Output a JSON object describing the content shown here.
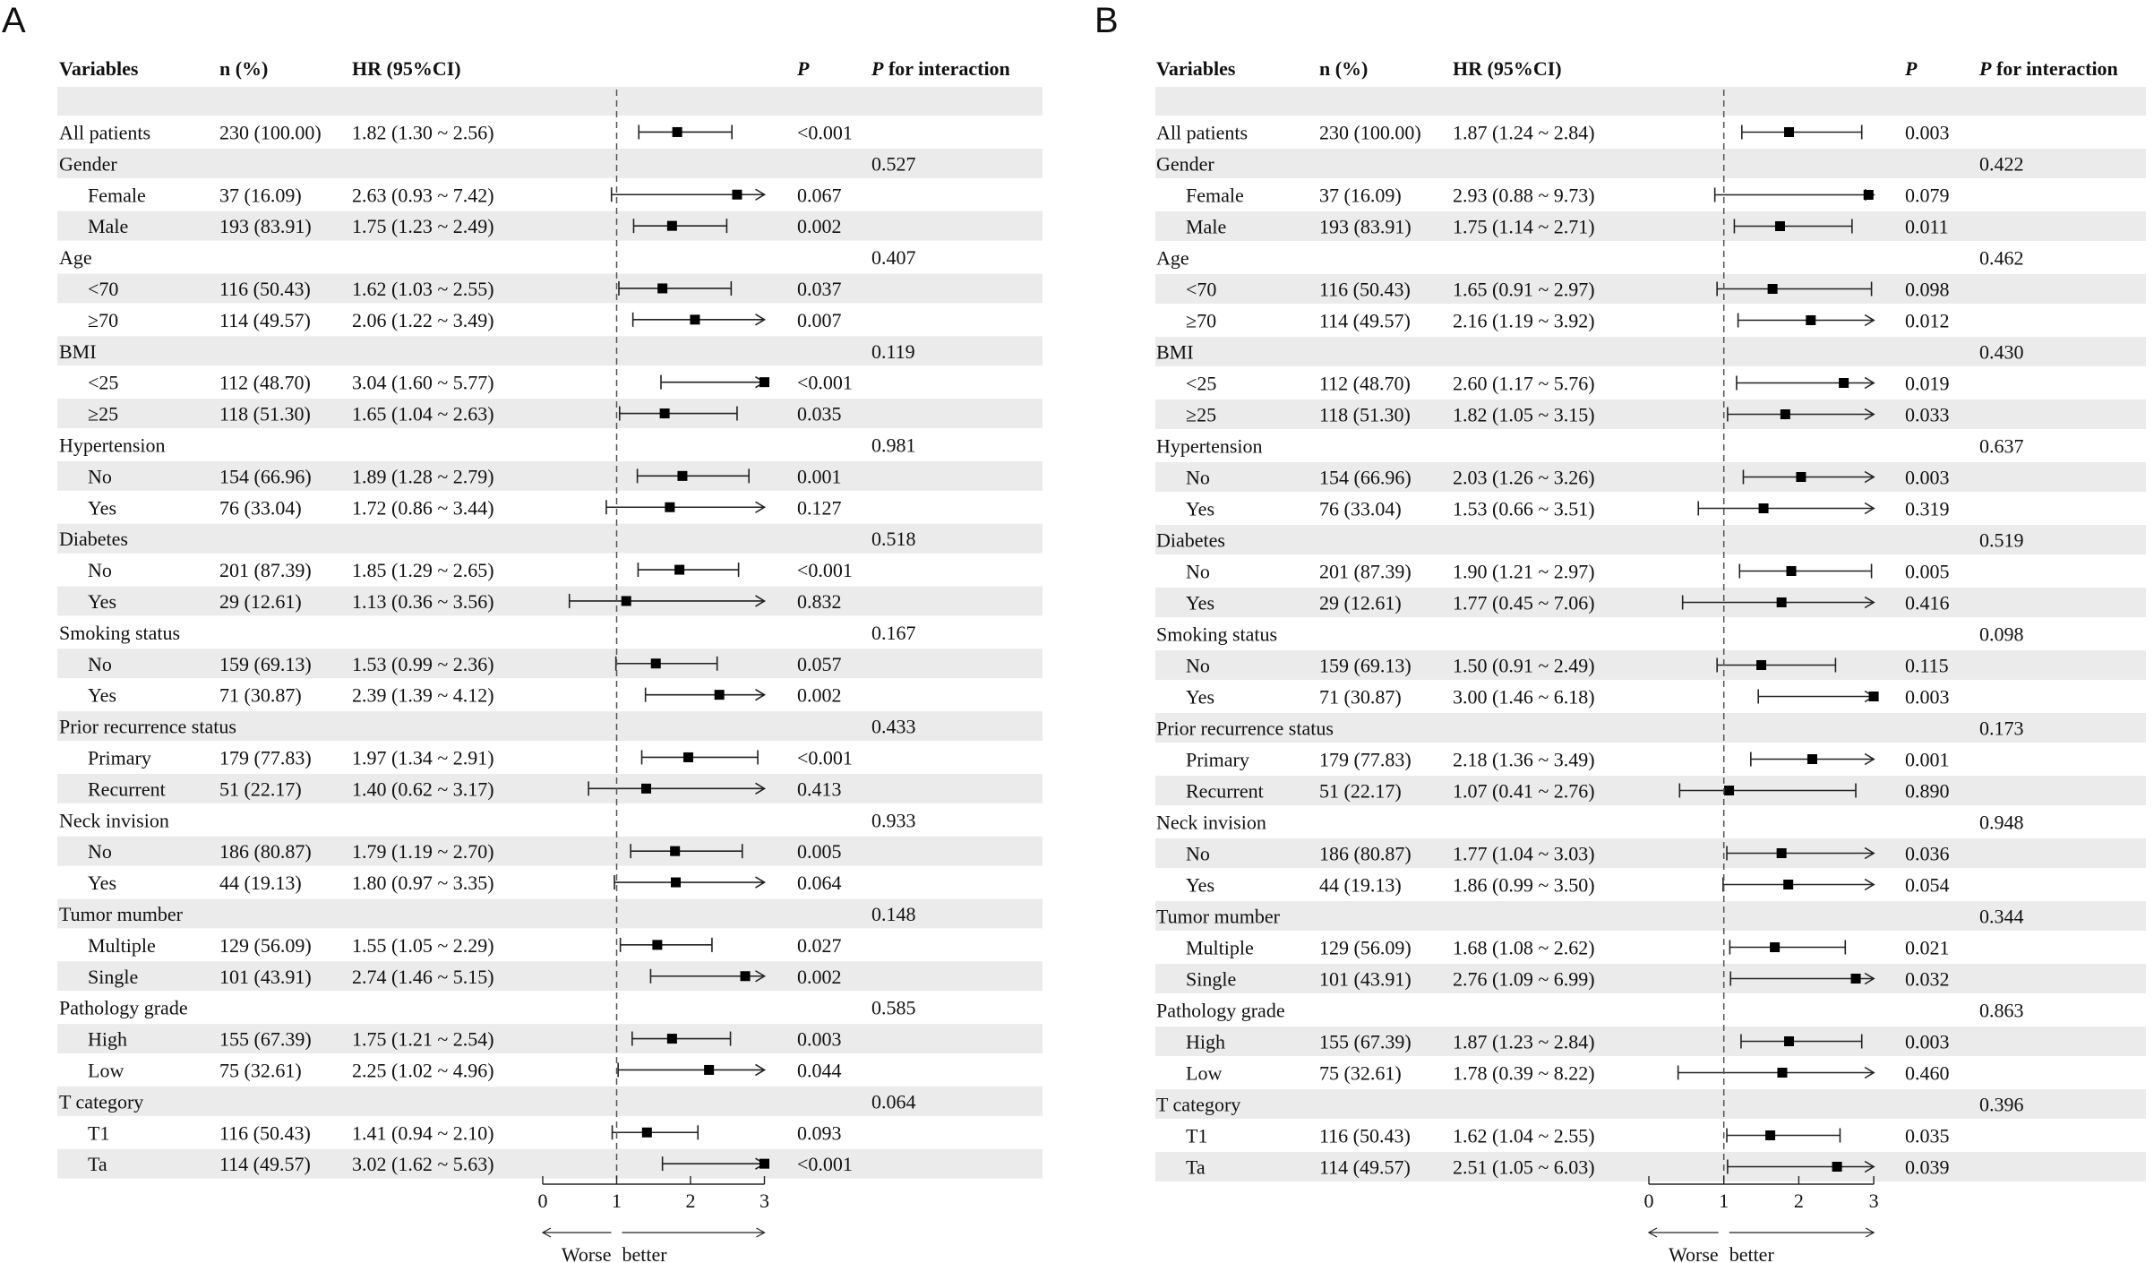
{
  "colors": {
    "stripe": "#ebebeb",
    "line": "#222222",
    "ref": "#555555"
  },
  "headers": {
    "variables": "Variables",
    "n": "n (%)",
    "hr": "HR (95%CI)",
    "p": "P",
    "pint_italic": "P",
    "pint_rest": " for interaction"
  },
  "axis": {
    "ticks": [
      0,
      1,
      2,
      3
    ],
    "ref": 1,
    "min": 0,
    "max": 3,
    "left_label": "Worse",
    "right_label": "better"
  },
  "chart_data": [
    {
      "type": "forest",
      "panel": "A",
      "title": "A",
      "xlabel": "HR (95%CI)",
      "xlim": [
        0,
        3
      ],
      "reference_line": 1,
      "rows": [
        {
          "label": "All patients",
          "indent": false,
          "n": "230 (100.00)",
          "hr_text": "1.82 (1.30 ~ 2.56)",
          "p": "<0.001",
          "pint": "",
          "hr": 1.82,
          "lo": 1.3,
          "hi": 2.56
        },
        {
          "label": "Gender",
          "indent": false,
          "n": "",
          "hr_text": "",
          "p": "",
          "pint": "0.527"
        },
        {
          "label": "Female",
          "indent": true,
          "n": "37 (16.09)",
          "hr_text": "2.63 (0.93 ~ 7.42)",
          "p": "0.067",
          "pint": "",
          "hr": 2.63,
          "lo": 0.93,
          "hi": 7.42
        },
        {
          "label": "Male",
          "indent": true,
          "n": "193 (83.91)",
          "hr_text": "1.75 (1.23 ~ 2.49)",
          "p": "0.002",
          "pint": "",
          "hr": 1.75,
          "lo": 1.23,
          "hi": 2.49
        },
        {
          "label": "Age",
          "indent": false,
          "n": "",
          "hr_text": "",
          "p": "",
          "pint": "0.407"
        },
        {
          "label": "<70",
          "indent": true,
          "n": "116 (50.43)",
          "hr_text": "1.62 (1.03 ~ 2.55)",
          "p": "0.037",
          "pint": "",
          "hr": 1.62,
          "lo": 1.03,
          "hi": 2.55
        },
        {
          "label": "≥70",
          "indent": true,
          "n": "114 (49.57)",
          "hr_text": "2.06 (1.22 ~ 3.49)",
          "p": "0.007",
          "pint": "",
          "hr": 2.06,
          "lo": 1.22,
          "hi": 3.49
        },
        {
          "label": "BMI",
          "indent": false,
          "n": "",
          "hr_text": "",
          "p": "",
          "pint": "0.119"
        },
        {
          "label": "<25",
          "indent": true,
          "n": "112 (48.70)",
          "hr_text": "3.04 (1.60 ~ 5.77)",
          "p": "<0.001",
          "pint": "",
          "hr": 3.04,
          "lo": 1.6,
          "hi": 5.77
        },
        {
          "label": "≥25",
          "indent": true,
          "n": "118 (51.30)",
          "hr_text": "1.65 (1.04 ~ 2.63)",
          "p": "0.035",
          "pint": "",
          "hr": 1.65,
          "lo": 1.04,
          "hi": 2.63
        },
        {
          "label": "Hypertension",
          "indent": false,
          "n": "",
          "hr_text": "",
          "p": "",
          "pint": "0.981"
        },
        {
          "label": "No",
          "indent": true,
          "n": "154 (66.96)",
          "hr_text": "1.89 (1.28 ~ 2.79)",
          "p": "0.001",
          "pint": "",
          "hr": 1.89,
          "lo": 1.28,
          "hi": 2.79
        },
        {
          "label": "Yes",
          "indent": true,
          "n": "76 (33.04)",
          "hr_text": "1.72 (0.86 ~ 3.44)",
          "p": "0.127",
          "pint": "",
          "hr": 1.72,
          "lo": 0.86,
          "hi": 3.44
        },
        {
          "label": "Diabetes",
          "indent": false,
          "n": "",
          "hr_text": "",
          "p": "",
          "pint": "0.518"
        },
        {
          "label": "No",
          "indent": true,
          "n": "201 (87.39)",
          "hr_text": "1.85 (1.29 ~ 2.65)",
          "p": "<0.001",
          "pint": "",
          "hr": 1.85,
          "lo": 1.29,
          "hi": 2.65
        },
        {
          "label": "Yes",
          "indent": true,
          "n": "29 (12.61)",
          "hr_text": "1.13 (0.36 ~ 3.56)",
          "p": "0.832",
          "pint": "",
          "hr": 1.13,
          "lo": 0.36,
          "hi": 3.56
        },
        {
          "label": "Smoking status",
          "indent": false,
          "n": "",
          "hr_text": "",
          "p": "",
          "pint": "0.167"
        },
        {
          "label": "No",
          "indent": true,
          "n": "159 (69.13)",
          "hr_text": "1.53 (0.99 ~ 2.36)",
          "p": "0.057",
          "pint": "",
          "hr": 1.53,
          "lo": 0.99,
          "hi": 2.36
        },
        {
          "label": "Yes",
          "indent": true,
          "n": "71 (30.87)",
          "hr_text": "2.39 (1.39 ~ 4.12)",
          "p": "0.002",
          "pint": "",
          "hr": 2.39,
          "lo": 1.39,
          "hi": 4.12
        },
        {
          "label": "Prior recurrence status",
          "indent": false,
          "n": "",
          "hr_text": "",
          "p": "",
          "pint": "0.433"
        },
        {
          "label": "Primary",
          "indent": true,
          "n": "179 (77.83)",
          "hr_text": "1.97 (1.34 ~ 2.91)",
          "p": "<0.001",
          "pint": "",
          "hr": 1.97,
          "lo": 1.34,
          "hi": 2.91
        },
        {
          "label": "Recurrent",
          "indent": true,
          "n": "51 (22.17)",
          "hr_text": "1.40 (0.62 ~ 3.17)",
          "p": "0.413",
          "pint": "",
          "hr": 1.4,
          "lo": 0.62,
          "hi": 3.17
        },
        {
          "label": "Neck invision",
          "indent": false,
          "n": "",
          "hr_text": "",
          "p": "",
          "pint": "0.933"
        },
        {
          "label": "No",
          "indent": true,
          "n": "186 (80.87)",
          "hr_text": "1.79 (1.19 ~ 2.70)",
          "p": "0.005",
          "pint": "",
          "hr": 1.79,
          "lo": 1.19,
          "hi": 2.7
        },
        {
          "label": "Yes",
          "indent": true,
          "n": "44 (19.13)",
          "hr_text": "1.80 (0.97 ~ 3.35)",
          "p": "0.064",
          "pint": "",
          "hr": 1.8,
          "lo": 0.97,
          "hi": 3.35
        },
        {
          "label": "Tumor mumber",
          "indent": false,
          "n": "",
          "hr_text": "",
          "p": "",
          "pint": "0.148"
        },
        {
          "label": "Multiple",
          "indent": true,
          "n": "129 (56.09)",
          "hr_text": "1.55 (1.05 ~ 2.29)",
          "p": "0.027",
          "pint": "",
          "hr": 1.55,
          "lo": 1.05,
          "hi": 2.29
        },
        {
          "label": "Single",
          "indent": true,
          "n": "101 (43.91)",
          "hr_text": "2.74 (1.46 ~ 5.15)",
          "p": "0.002",
          "pint": "",
          "hr": 2.74,
          "lo": 1.46,
          "hi": 5.15
        },
        {
          "label": "Pathology grade",
          "indent": false,
          "n": "",
          "hr_text": "",
          "p": "",
          "pint": "0.585"
        },
        {
          "label": "High",
          "indent": true,
          "n": "155 (67.39)",
          "hr_text": "1.75 (1.21 ~ 2.54)",
          "p": "0.003",
          "pint": "",
          "hr": 1.75,
          "lo": 1.21,
          "hi": 2.54
        },
        {
          "label": "Low",
          "indent": true,
          "n": "75 (32.61)",
          "hr_text": "2.25 (1.02 ~ 4.96)",
          "p": "0.044",
          "pint": "",
          "hr": 2.25,
          "lo": 1.02,
          "hi": 4.96
        },
        {
          "label": "T category",
          "indent": false,
          "n": "",
          "hr_text": "",
          "p": "",
          "pint": "0.064"
        },
        {
          "label": "T1",
          "indent": true,
          "n": "116 (50.43)",
          "hr_text": "1.41 (0.94 ~ 2.10)",
          "p": "0.093",
          "pint": "",
          "hr": 1.41,
          "lo": 0.94,
          "hi": 2.1
        },
        {
          "label": "Ta",
          "indent": true,
          "n": "114 (49.57)",
          "hr_text": "3.02 (1.62 ~ 5.63)",
          "p": "<0.001",
          "pint": "",
          "hr": 3.02,
          "lo": 1.62,
          "hi": 5.63
        }
      ]
    },
    {
      "type": "forest",
      "panel": "B",
      "title": "B",
      "xlabel": "HR (95%CI)",
      "xlim": [
        0,
        3
      ],
      "reference_line": 1,
      "rows": [
        {
          "label": "All patients",
          "indent": false,
          "n": "230 (100.00)",
          "hr_text": "1.87 (1.24 ~ 2.84)",
          "p": "0.003",
          "pint": "",
          "hr": 1.87,
          "lo": 1.24,
          "hi": 2.84
        },
        {
          "label": "Gender",
          "indent": false,
          "n": "",
          "hr_text": "",
          "p": "",
          "pint": "0.422"
        },
        {
          "label": "Female",
          "indent": true,
          "n": "37 (16.09)",
          "hr_text": "2.93 (0.88 ~ 9.73)",
          "p": "0.079",
          "pint": "",
          "hr": 2.93,
          "lo": 0.88,
          "hi": 9.73
        },
        {
          "label": "Male",
          "indent": true,
          "n": "193 (83.91)",
          "hr_text": "1.75 (1.14 ~ 2.71)",
          "p": "0.011",
          "pint": "",
          "hr": 1.75,
          "lo": 1.14,
          "hi": 2.71
        },
        {
          "label": "Age",
          "indent": false,
          "n": "",
          "hr_text": "",
          "p": "",
          "pint": "0.462"
        },
        {
          "label": "<70",
          "indent": true,
          "n": "116 (50.43)",
          "hr_text": "1.65 (0.91 ~ 2.97)",
          "p": "0.098",
          "pint": "",
          "hr": 1.65,
          "lo": 0.91,
          "hi": 2.97
        },
        {
          "label": "≥70",
          "indent": true,
          "n": "114 (49.57)",
          "hr_text": "2.16 (1.19 ~ 3.92)",
          "p": "0.012",
          "pint": "",
          "hr": 2.16,
          "lo": 1.19,
          "hi": 3.92
        },
        {
          "label": "BMI",
          "indent": false,
          "n": "",
          "hr_text": "",
          "p": "",
          "pint": "0.430"
        },
        {
          "label": "<25",
          "indent": true,
          "n": "112 (48.70)",
          "hr_text": "2.60 (1.17 ~ 5.76)",
          "p": "0.019",
          "pint": "",
          "hr": 2.6,
          "lo": 1.17,
          "hi": 5.76
        },
        {
          "label": "≥25",
          "indent": true,
          "n": "118 (51.30)",
          "hr_text": "1.82 (1.05 ~ 3.15)",
          "p": "0.033",
          "pint": "",
          "hr": 1.82,
          "lo": 1.05,
          "hi": 3.15
        },
        {
          "label": "Hypertension",
          "indent": false,
          "n": "",
          "hr_text": "",
          "p": "",
          "pint": "0.637"
        },
        {
          "label": "No",
          "indent": true,
          "n": "154 (66.96)",
          "hr_text": "2.03 (1.26 ~ 3.26)",
          "p": "0.003",
          "pint": "",
          "hr": 2.03,
          "lo": 1.26,
          "hi": 3.26
        },
        {
          "label": "Yes",
          "indent": true,
          "n": "76 (33.04)",
          "hr_text": "1.53 (0.66 ~ 3.51)",
          "p": "0.319",
          "pint": "",
          "hr": 1.53,
          "lo": 0.66,
          "hi": 3.51
        },
        {
          "label": "Diabetes",
          "indent": false,
          "n": "",
          "hr_text": "",
          "p": "",
          "pint": "0.519"
        },
        {
          "label": "No",
          "indent": true,
          "n": "201 (87.39)",
          "hr_text": "1.90 (1.21 ~ 2.97)",
          "p": "0.005",
          "pint": "",
          "hr": 1.9,
          "lo": 1.21,
          "hi": 2.97
        },
        {
          "label": "Yes",
          "indent": true,
          "n": "29 (12.61)",
          "hr_text": "1.77 (0.45 ~ 7.06)",
          "p": "0.416",
          "pint": "",
          "hr": 1.77,
          "lo": 0.45,
          "hi": 7.06
        },
        {
          "label": "Smoking status",
          "indent": false,
          "n": "",
          "hr_text": "",
          "p": "",
          "pint": "0.098"
        },
        {
          "label": "No",
          "indent": true,
          "n": "159 (69.13)",
          "hr_text": "1.50 (0.91 ~ 2.49)",
          "p": "0.115",
          "pint": "",
          "hr": 1.5,
          "lo": 0.91,
          "hi": 2.49
        },
        {
          "label": "Yes",
          "indent": true,
          "n": "71 (30.87)",
          "hr_text": "3.00 (1.46 ~ 6.18)",
          "p": "0.003",
          "pint": "",
          "hr": 3.0,
          "lo": 1.46,
          "hi": 6.18
        },
        {
          "label": "Prior recurrence status",
          "indent": false,
          "n": "",
          "hr_text": "",
          "p": "",
          "pint": "0.173"
        },
        {
          "label": "Primary",
          "indent": true,
          "n": "179 (77.83)",
          "hr_text": "2.18 (1.36 ~ 3.49)",
          "p": "0.001",
          "pint": "",
          "hr": 2.18,
          "lo": 1.36,
          "hi": 3.49
        },
        {
          "label": "Recurrent",
          "indent": true,
          "n": "51 (22.17)",
          "hr_text": "1.07 (0.41 ~ 2.76)",
          "p": "0.890",
          "pint": "",
          "hr": 1.07,
          "lo": 0.41,
          "hi": 2.76
        },
        {
          "label": "Neck invision",
          "indent": false,
          "n": "",
          "hr_text": "",
          "p": "",
          "pint": "0.948"
        },
        {
          "label": "No",
          "indent": true,
          "n": "186 (80.87)",
          "hr_text": "1.77 (1.04 ~ 3.03)",
          "p": "0.036",
          "pint": "",
          "hr": 1.77,
          "lo": 1.04,
          "hi": 3.03
        },
        {
          "label": "Yes",
          "indent": true,
          "n": "44 (19.13)",
          "hr_text": "1.86 (0.99 ~ 3.50)",
          "p": "0.054",
          "pint": "",
          "hr": 1.86,
          "lo": 0.99,
          "hi": 3.5
        },
        {
          "label": "Tumor mumber",
          "indent": false,
          "n": "",
          "hr_text": "",
          "p": "",
          "pint": "0.344"
        },
        {
          "label": "Multiple",
          "indent": true,
          "n": "129 (56.09)",
          "hr_text": "1.68 (1.08 ~ 2.62)",
          "p": "0.021",
          "pint": "",
          "hr": 1.68,
          "lo": 1.08,
          "hi": 2.62
        },
        {
          "label": "Single",
          "indent": true,
          "n": "101 (43.91)",
          "hr_text": "2.76 (1.09 ~ 6.99)",
          "p": "0.032",
          "pint": "",
          "hr": 2.76,
          "lo": 1.09,
          "hi": 6.99
        },
        {
          "label": "Pathology grade",
          "indent": false,
          "n": "",
          "hr_text": "",
          "p": "",
          "pint": "0.863"
        },
        {
          "label": "High",
          "indent": true,
          "n": "155 (67.39)",
          "hr_text": "1.87 (1.23 ~ 2.84)",
          "p": "0.003",
          "pint": "",
          "hr": 1.87,
          "lo": 1.23,
          "hi": 2.84
        },
        {
          "label": "Low",
          "indent": true,
          "n": "75 (32.61)",
          "hr_text": "1.78 (0.39 ~ 8.22)",
          "p": "0.460",
          "pint": "",
          "hr": 1.78,
          "lo": 0.39,
          "hi": 8.22
        },
        {
          "label": "T category",
          "indent": false,
          "n": "",
          "hr_text": "",
          "p": "",
          "pint": "0.396"
        },
        {
          "label": "T1",
          "indent": true,
          "n": "116 (50.43)",
          "hr_text": "1.62 (1.04 ~ 2.55)",
          "p": "0.035",
          "pint": "",
          "hr": 1.62,
          "lo": 1.04,
          "hi": 2.55
        },
        {
          "label": "Ta",
          "indent": true,
          "n": "114 (49.57)",
          "hr_text": "2.51 (1.05 ~ 6.03)",
          "p": "0.039",
          "pint": "",
          "hr": 2.51,
          "lo": 1.05,
          "hi": 6.03
        }
      ]
    }
  ]
}
